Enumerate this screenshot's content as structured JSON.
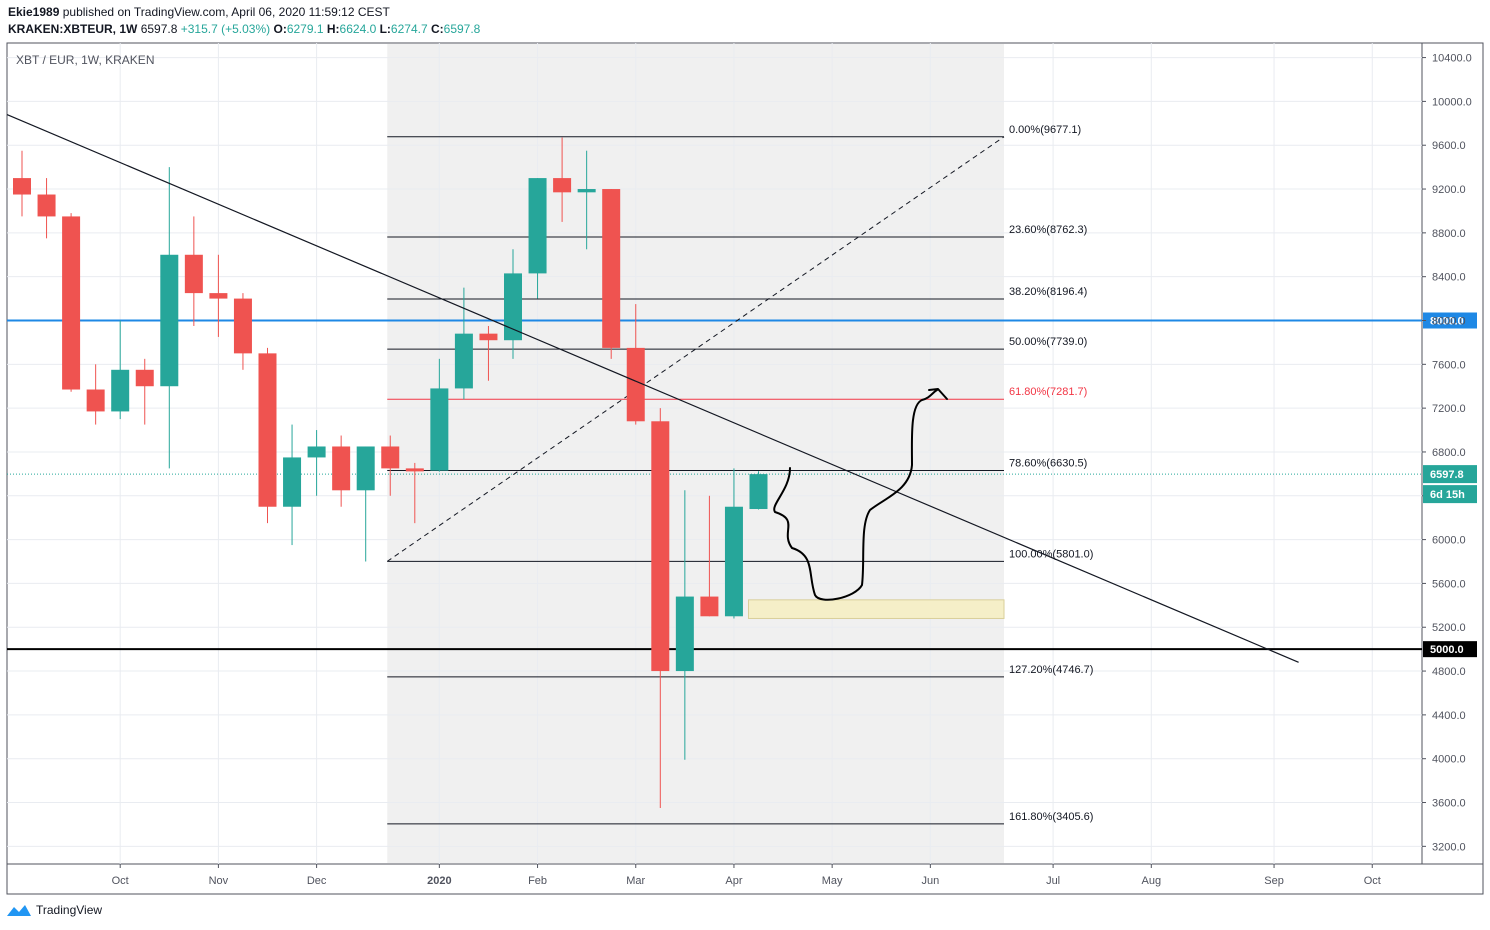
{
  "header": {
    "author": "Ekie1989",
    "published_text": "published on TradingView.com, April 06, 2020 11:59:12 CEST",
    "symbol_line": "KRAKEN:XBTEUR, 1W",
    "last_price": "6597.8",
    "change": "+315.7 (+5.03%)",
    "open_label": "O:",
    "open": "6279.1",
    "high_label": "H:",
    "high": "6624.0",
    "low_label": "L:",
    "low": "6274.7",
    "close_label": "C:",
    "close": "6597.8"
  },
  "chart_title": "XBT / EUR, 1W, KRAKEN",
  "footer": {
    "brand": "TradingView"
  },
  "colors": {
    "up": "#26a69a",
    "down": "#ef5350",
    "level_blue": "#1e88e5",
    "fib_red": "#f23645",
    "zone": "#f5efc8"
  },
  "chart_data": {
    "type": "candlestick",
    "title": "XBT / EUR, 1W, KRAKEN",
    "ylim": [
      3000,
      10600
    ],
    "y_ticks": [
      3200,
      3600,
      4000,
      4400,
      4800,
      5200,
      5600,
      6000,
      6400,
      6800,
      7200,
      7600,
      8000,
      8400,
      8800,
      9200,
      9600,
      10000,
      10400
    ],
    "x_labels": [
      "Oct",
      "Nov",
      "Dec",
      "2020",
      "Feb",
      "Mar",
      "Apr",
      "May",
      "Jun",
      "Jul",
      "Aug",
      "Sep",
      "Oct"
    ],
    "x_label_weeks": [
      4,
      8,
      12,
      17,
      21,
      25,
      29,
      33,
      37,
      42,
      46,
      51,
      55
    ],
    "candles": [
      {
        "o": 9300,
        "h": 9550,
        "l": 8950,
        "c": 9150
      },
      {
        "o": 9150,
        "h": 9300,
        "l": 8750,
        "c": 8950
      },
      {
        "o": 8950,
        "h": 8980,
        "l": 7350,
        "c": 7370
      },
      {
        "o": 7370,
        "h": 7600,
        "l": 7050,
        "c": 7170
      },
      {
        "o": 7170,
        "h": 8000,
        "l": 7100,
        "c": 7550
      },
      {
        "o": 7550,
        "h": 7650,
        "l": 7050,
        "c": 7400
      },
      {
        "o": 7400,
        "h": 9400,
        "l": 6650,
        "c": 8600
      },
      {
        "o": 8600,
        "h": 8950,
        "l": 7950,
        "c": 8250
      },
      {
        "o": 8250,
        "h": 8600,
        "l": 7850,
        "c": 8200
      },
      {
        "o": 8200,
        "h": 8250,
        "l": 7550,
        "c": 7700
      },
      {
        "o": 7700,
        "h": 7750,
        "l": 6150,
        "c": 6300
      },
      {
        "o": 6300,
        "h": 7050,
        "l": 5950,
        "c": 6750
      },
      {
        "o": 6750,
        "h": 7000,
        "l": 6400,
        "c": 6850
      },
      {
        "o": 6850,
        "h": 6950,
        "l": 6300,
        "c": 6450
      },
      {
        "o": 6450,
        "h": 6850,
        "l": 5800,
        "c": 6850
      },
      {
        "o": 6850,
        "h": 6950,
        "l": 6400,
        "c": 6650
      },
      {
        "o": 6650,
        "h": 6700,
        "l": 6150,
        "c": 6630
      },
      {
        "o": 6630,
        "h": 7650,
        "l": 6620,
        "c": 7380
      },
      {
        "o": 7380,
        "h": 8300,
        "l": 7280,
        "c": 7880
      },
      {
        "o": 7880,
        "h": 7950,
        "l": 7450,
        "c": 7820
      },
      {
        "o": 7820,
        "h": 8650,
        "l": 7650,
        "c": 8430
      },
      {
        "o": 8430,
        "h": 9300,
        "l": 8200,
        "c": 9300
      },
      {
        "o": 9300,
        "h": 9670,
        "l": 8900,
        "c": 9170
      },
      {
        "o": 9170,
        "h": 9550,
        "l": 8650,
        "c": 9200
      },
      {
        "o": 9200,
        "h": 9200,
        "l": 7650,
        "c": 7750
      },
      {
        "o": 7750,
        "h": 8150,
        "l": 7050,
        "c": 7080
      },
      {
        "o": 7080,
        "h": 7200,
        "l": 3550,
        "c": 4800
      },
      {
        "o": 4800,
        "h": 6450,
        "l": 3990,
        "c": 5480
      },
      {
        "o": 5480,
        "h": 6400,
        "l": 5300,
        "c": 5300
      },
      {
        "o": 5300,
        "h": 6650,
        "l": 5280,
        "c": 6300
      },
      {
        "o": 6279.1,
        "h": 6624.0,
        "l": 6274.7,
        "c": 6597.8
      }
    ],
    "fib_levels": [
      {
        "label": "0.00%(9677.1)",
        "value": 9677.1
      },
      {
        "label": "23.60%(8762.3)",
        "value": 8762.3
      },
      {
        "label": "38.20%(8196.4)",
        "value": 8196.4
      },
      {
        "label": "50.00%(7739.0)",
        "value": 7739.0
      },
      {
        "label": "61.80%(7281.7)",
        "value": 7281.7,
        "highlight": true
      },
      {
        "label": "78.60%(6630.5)",
        "value": 6630.5
      },
      {
        "label": "100.00%(5801.0)",
        "value": 5801.0
      },
      {
        "label": "127.20%(4746.7)",
        "value": 4746.7
      },
      {
        "label": "161.80%(3405.6)",
        "value": 3405.6
      }
    ],
    "fib_start_week": 15,
    "fib_end_week": 40,
    "horizontal_levels": [
      {
        "label": "8000.0",
        "value": 8000,
        "color": "blue"
      },
      {
        "label": "5000.0",
        "value": 5000,
        "color": "black"
      }
    ],
    "current_price_label": "6597.8",
    "countdown_label": "6d 15h",
    "trendline": {
      "start": {
        "week": 0,
        "value": 9880
      },
      "end": {
        "week": 52,
        "value": 4880
      }
    },
    "fib_diagonal": {
      "start": {
        "week": 15,
        "value": 5801
      },
      "end": {
        "week": 40,
        "value": 9677
      }
    },
    "support_zone": {
      "start_week": 30,
      "end_week": 40,
      "top": 5450,
      "bottom": 5280
    }
  }
}
